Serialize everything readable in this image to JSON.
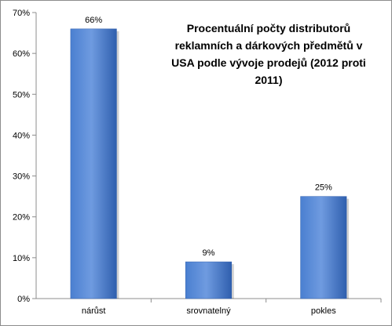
{
  "chart_data": {
    "type": "bar",
    "title": "Procentuální počty distributorů reklamních a dárkových předmětů v USA podle vývoje prodejů (2012 proti 2011)",
    "categories": [
      "nárůst",
      "srovnatelný",
      "pokles"
    ],
    "values": [
      66,
      9,
      25
    ],
    "data_labels": [
      "66%",
      "9%",
      "25%"
    ],
    "xlabel": "",
    "ylabel": "",
    "ylim": [
      0,
      70
    ],
    "y_ticks": [
      "0%",
      "10%",
      "20%",
      "30%",
      "40%",
      "50%",
      "60%",
      "70%"
    ],
    "grid": false,
    "legend": "none",
    "colors": {
      "bar_fill_light": "#6f9be0",
      "bar_fill_mid": "#4a7fd0",
      "bar_fill_dark": "#2f5fae",
      "axis": "#8c8c8c"
    }
  }
}
